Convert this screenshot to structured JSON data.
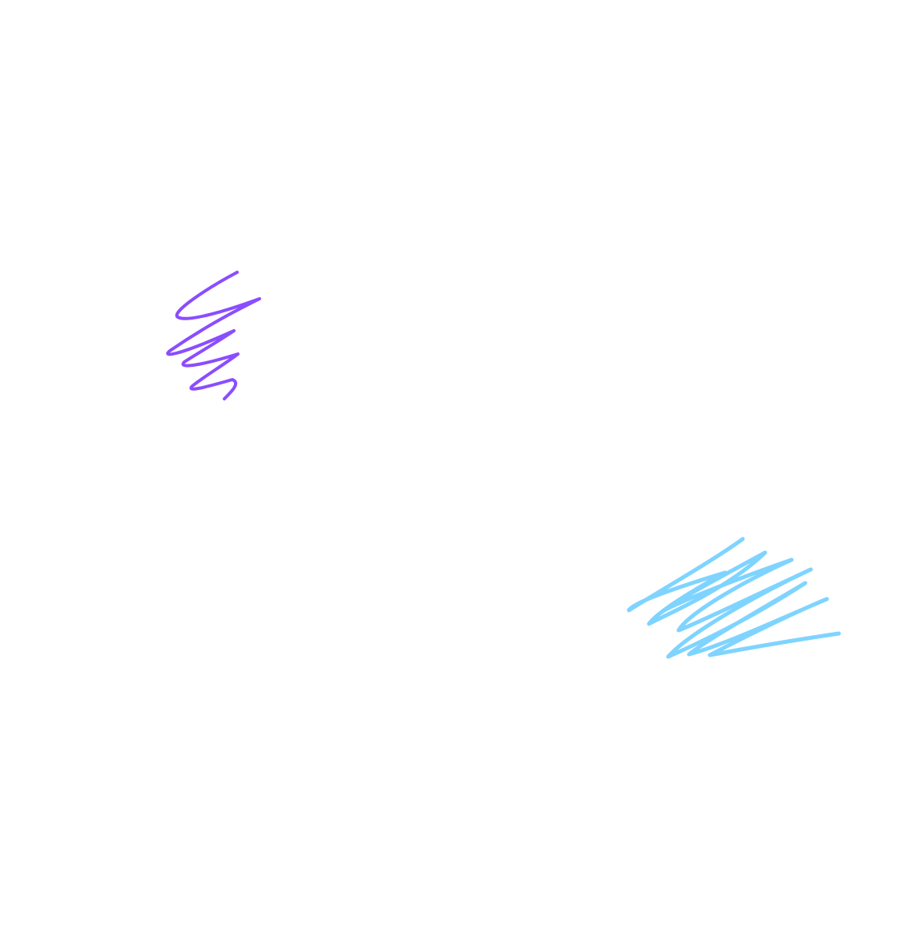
{
  "canvas": {
    "background": "#ffffff",
    "strokes": [
      {
        "name": "purple-scribble",
        "color": "#8a4dff"
      },
      {
        "name": "blue-scribble",
        "color": "#7fd4ff"
      }
    ]
  }
}
